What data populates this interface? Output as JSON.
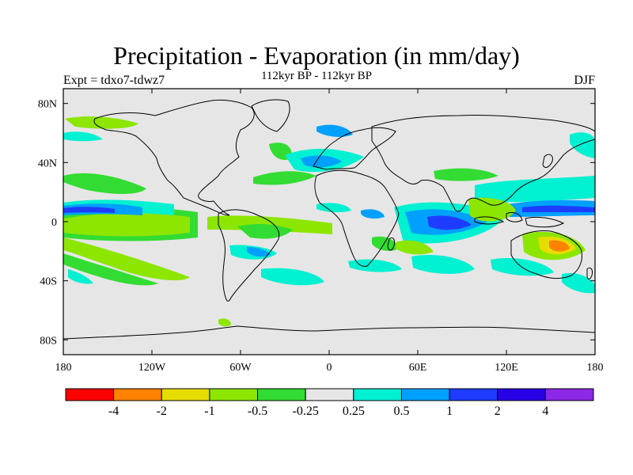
{
  "header": {
    "title": "Precipitation - Evaporation (in mm/day)",
    "subtitle": "112kyr BP - 112kyr BP",
    "left_label": "Expt = tdxo7-tdwz7",
    "right_label": "DJF"
  },
  "map": {
    "lon_ticks": [
      "180",
      "120W",
      "60W",
      "0",
      "60E",
      "120E",
      "180"
    ],
    "lat_ticks": [
      "80N",
      "40N",
      "0",
      "40S",
      "80S"
    ],
    "background_color": "#e6e6e6",
    "coastline_color": "#000000"
  },
  "colorbar": {
    "colors": [
      "#ff0000",
      "#ff8200",
      "#e6dc00",
      "#8ce600",
      "#32dc32",
      "#e6e6e6",
      "#00f0d2",
      "#00a0ff",
      "#1e3cff",
      "#2800e6",
      "#8c28e6"
    ],
    "labels": [
      "-4",
      "-2",
      "-1",
      "-0.5",
      "-0.25",
      "0.25",
      "0.5",
      "1",
      "2",
      "4"
    ]
  }
}
